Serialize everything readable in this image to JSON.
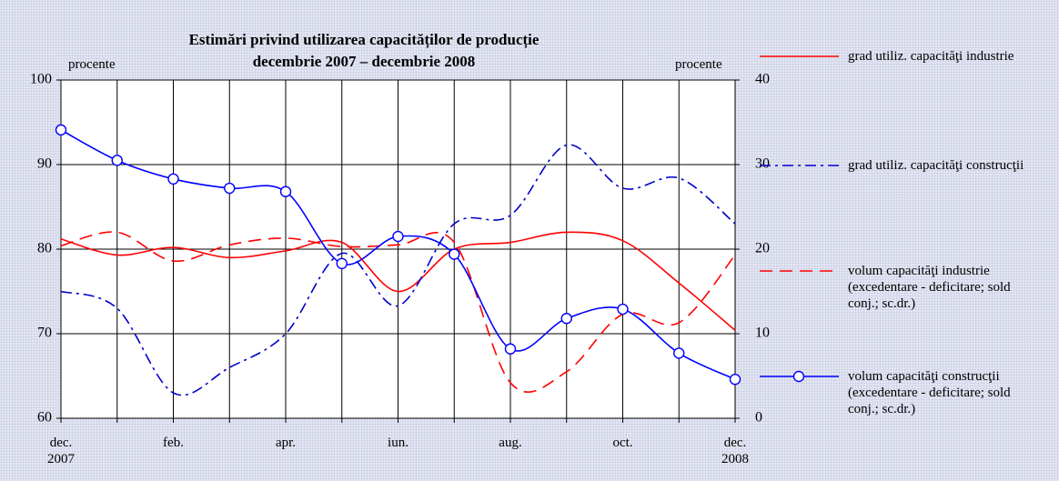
{
  "chart_data": {
    "type": "line",
    "title": "Estimări privind utilizarea capacităților de producție",
    "subtitle": "decembrie 2007 – decembrie 2008",
    "y_label": "procente",
    "y2_label": "procente",
    "categories": [
      "dec. 2007",
      null,
      "feb.",
      null,
      "apr.",
      null,
      "iun.",
      null,
      "aug.",
      null,
      "oct.",
      null,
      "dec. 2008"
    ],
    "ylim": [
      60,
      100
    ],
    "yticks": [
      60,
      70,
      80,
      90,
      100
    ],
    "y2lim": [
      0,
      40
    ],
    "y2ticks": [
      0,
      10,
      20,
      30,
      40
    ],
    "grid": true,
    "series": [
      {
        "name": "grad utiliz. capacităţi industrie",
        "color": "#ff0000",
        "dash": "solid",
        "values": [
          81.2,
          79.3,
          80.2,
          79,
          79.8,
          80.8,
          75,
          80,
          80.8,
          82,
          81,
          76,
          70.4
        ]
      },
      {
        "name": "grad utiliz. capacităţi construcţii",
        "color": "#0000cc",
        "dash": "dashdot",
        "values": [
          75,
          73,
          63,
          66,
          70,
          79.5,
          73.3,
          83,
          84,
          92.3,
          87.2,
          88.4,
          83
        ]
      },
      {
        "name": "volum capacităţi industrie (excedentare - deficitare; sold conj.; sc.dr.)",
        "color": "#ff0000",
        "dash": "dashed",
        "axis": "y2",
        "values": [
          20.4,
          22,
          18.6,
          20.5,
          21.3,
          20.3,
          20.5,
          20.8,
          4.2,
          5.5,
          12.3,
          11.3,
          19.3
        ]
      },
      {
        "name": "volum capacităţi construcţii (excedentare - deficitare; sold conj.; sc.dr.)",
        "color": "#0000ff",
        "dash": "solid",
        "marker": "circle",
        "axis": "y2",
        "values": [
          34.1,
          30.5,
          28.3,
          27.2,
          26.8,
          18.3,
          21.5,
          19.4,
          8.2,
          11.8,
          12.9,
          7.7,
          4.6
        ]
      }
    ]
  }
}
